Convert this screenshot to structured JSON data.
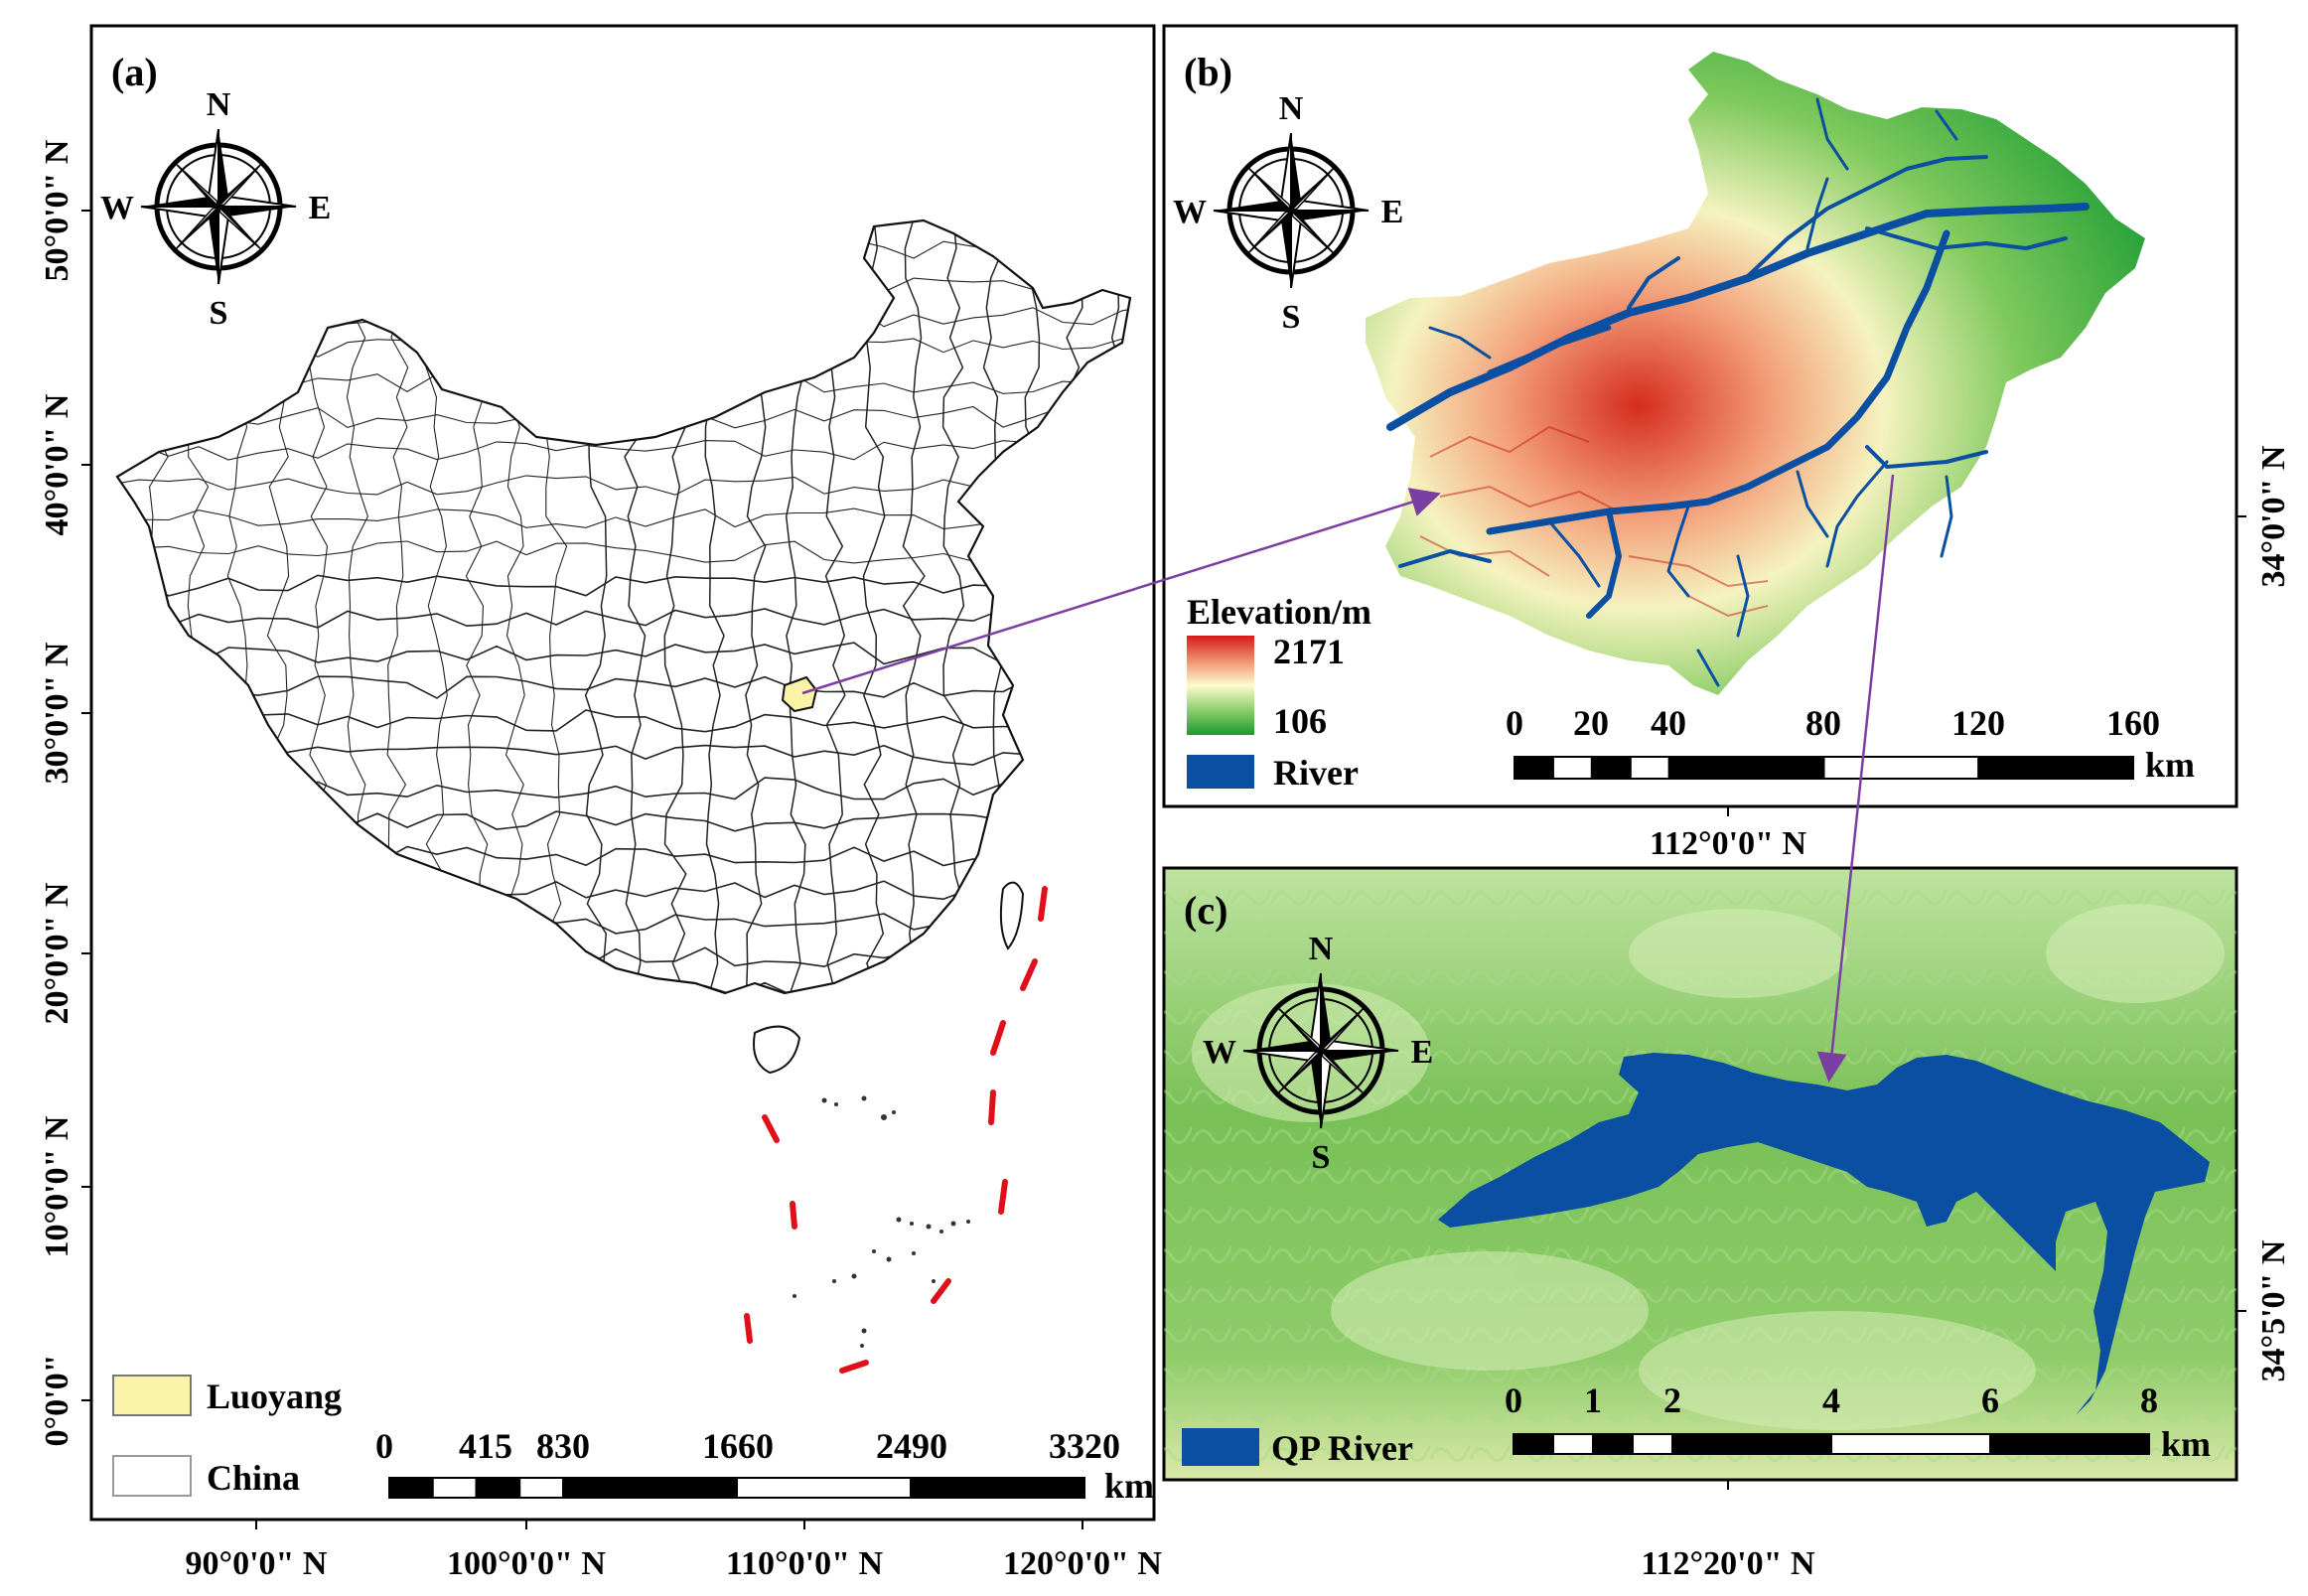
{
  "panels": {
    "a": {
      "label": "(a)",
      "compass": {
        "n": "N",
        "s": "S",
        "w": "W",
        "e": "E"
      },
      "legend": [
        {
          "name": "Luoyang",
          "color": "#fbf4a6"
        },
        {
          "name": "China",
          "color": "#ffffff"
        }
      ],
      "scale": {
        "ticks": [
          "0",
          "415",
          "830",
          "1660",
          "2490",
          "3320"
        ],
        "unit": "km"
      },
      "lat_labels": [
        "50°0'0\" N",
        "40°0'0\" N",
        "30°0'0\" N",
        "20°0'0\" N",
        "10°0'0\" N",
        "0°0'0\""
      ],
      "lon_labels": [
        "90°0'0\" N",
        "100°0'0\" N",
        "110°0'0\" N",
        "120°0'0\" N"
      ]
    },
    "b": {
      "label": "(b)",
      "compass": {
        "n": "N",
        "s": "S",
        "w": "W",
        "e": "E"
      },
      "legend_title": "Elevation/m",
      "elev_max": "2171",
      "elev_min": "106",
      "river_label": "River",
      "river_color": "#0b4fa3",
      "scale": {
        "ticks": [
          "0",
          "20",
          "40",
          "80",
          "120",
          "160"
        ],
        "unit": "km"
      },
      "lat_label": "34°0'0\" N",
      "lon_label": "112°0'0\" N"
    },
    "c": {
      "label": "(c)",
      "compass": {
        "n": "N",
        "s": "S",
        "w": "W",
        "e": "E"
      },
      "legend_label": "QP River",
      "river_color": "#0b4fa3",
      "scale": {
        "ticks": [
          "0",
          "1",
          "2",
          "4",
          "6",
          "8"
        ],
        "unit": "km"
      },
      "lat_label": "34°5'0\" N",
      "lon_label": "112°20'0\" N"
    }
  }
}
